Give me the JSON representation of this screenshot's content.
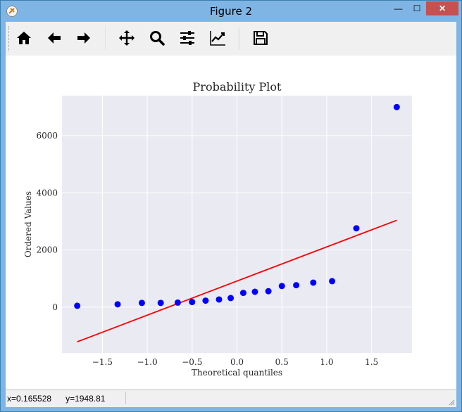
{
  "window": {
    "title": "Figure 2",
    "close_glyph": "✕",
    "minimize_glyph": "—",
    "maximize_glyph": "☐"
  },
  "toolbar": {
    "buttons": [
      {
        "name": "home",
        "icon": "home-icon"
      },
      {
        "name": "back",
        "icon": "arrow-left-icon"
      },
      {
        "name": "forward",
        "icon": "arrow-right-icon"
      },
      {
        "name": "pan",
        "icon": "move-icon"
      },
      {
        "name": "zoom",
        "icon": "magnifier-icon"
      },
      {
        "name": "subplots",
        "icon": "sliders-icon"
      },
      {
        "name": "edit-axis",
        "icon": "line-chart-icon"
      },
      {
        "name": "save",
        "icon": "floppy-disk-icon"
      }
    ]
  },
  "status": {
    "coords": "x=0.165528      y=1948.81"
  },
  "chart_data": {
    "type": "scatter",
    "title": "Probability Plot",
    "xlabel": "Theoretical quantiles",
    "ylabel": "Ordered Values",
    "xlim": [
      -1.95,
      1.95
    ],
    "ylim": [
      -1600,
      7400
    ],
    "xticks": [
      -1.5,
      -1.0,
      -0.5,
      0.0,
      0.5,
      1.0,
      1.5
    ],
    "xtick_labels": [
      "−1.5",
      "−1.0",
      "−0.5",
      "0.0",
      "0.5",
      "1.0",
      "1.5"
    ],
    "yticks": [
      0,
      2000,
      4000,
      6000
    ],
    "ytick_labels": [
      "0",
      "2000",
      "4000",
      "6000"
    ],
    "grid": true,
    "background": "#eaeaf2",
    "series": [
      {
        "marker": "circle",
        "color": "#0000ff",
        "x": [
          -1.78,
          -1.33,
          -1.06,
          -0.85,
          -0.66,
          -0.5,
          -0.35,
          -0.2,
          -0.07,
          0.07,
          0.2,
          0.35,
          0.5,
          0.66,
          0.85,
          1.06,
          1.33,
          1.78
        ],
        "y": [
          50,
          100,
          150,
          150,
          160,
          180,
          230,
          270,
          320,
          500,
          540,
          560,
          740,
          770,
          860,
          910,
          2760,
          7000
        ]
      },
      {
        "type": "line",
        "color": "#ff0000",
        "x": [
          -1.78,
          1.78
        ],
        "y": [
          -1210,
          3040
        ]
      }
    ]
  }
}
